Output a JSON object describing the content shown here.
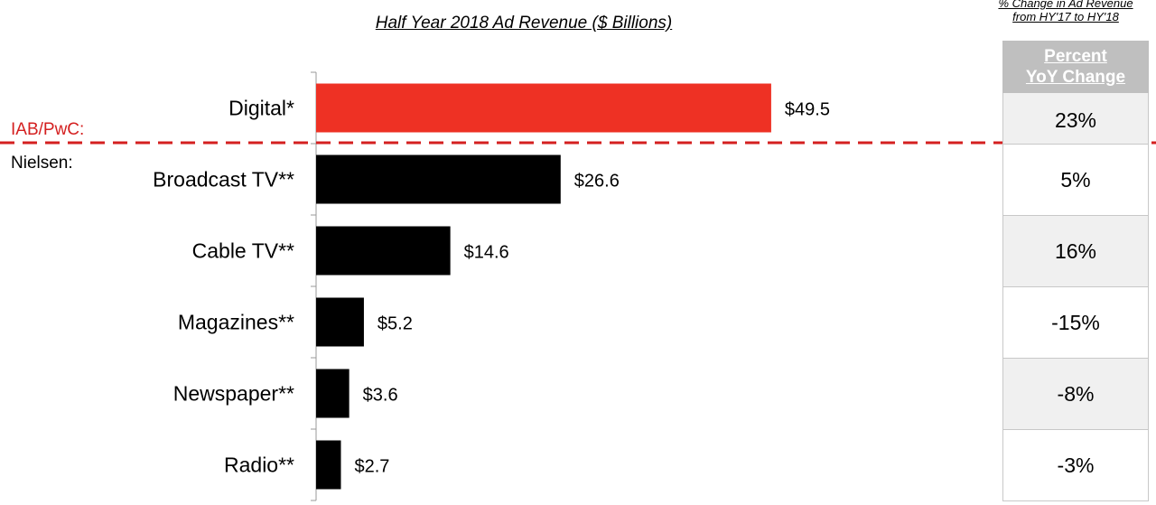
{
  "chart_data": {
    "type": "bar",
    "orientation": "horizontal",
    "title": "Half Year 2018 Ad Revenue ($ Billions)",
    "categories": [
      "Digital*",
      "Broadcast TV**",
      "Cable TV**",
      "Magazines**",
      "Newspaper**",
      "Radio**"
    ],
    "values": [
      49.5,
      26.6,
      14.6,
      5.2,
      3.6,
      2.7
    ],
    "value_labels": [
      "$49.5",
      "$26.6",
      "$14.6",
      "$5.2",
      "$3.6",
      "$2.7"
    ],
    "bar_colors": [
      "#ee3124",
      "#000000",
      "#000000",
      "#000000",
      "#000000",
      "#000000"
    ],
    "xlim": [
      0,
      50
    ],
    "xlabel": "",
    "ylabel": "",
    "grid": false,
    "divider_color": "#d42020"
  },
  "groups": {
    "iab": "IAB/PwC:",
    "nielsen": "Nielsen:"
  },
  "side_note": {
    "line1": "% Change in Ad Revenue",
    "line2": "from HY'17 to HY'18"
  },
  "yoy_table": {
    "header_line1": "Percent",
    "header_line2": "YoY Change",
    "values": [
      "23%",
      "5%",
      "16%",
      "-15%",
      "-8%",
      "-3%"
    ]
  }
}
